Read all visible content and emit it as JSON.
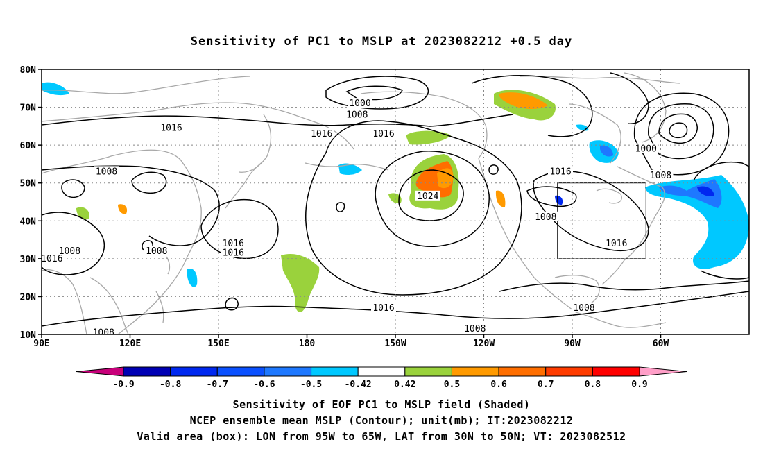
{
  "title": "Sensitivity of PC1 to MSLP at 2023082212 +0.5 day",
  "lat_labels": [
    "80N",
    "70N",
    "60N",
    "50N",
    "40N",
    "30N",
    "20N",
    "10N"
  ],
  "lon_labels": [
    "90E",
    "120E",
    "150E",
    "180",
    "150W",
    "120W",
    "90W",
    "60W"
  ],
  "contour_labels": [
    {
      "text": "1000",
      "lon": -162,
      "lat": 71
    },
    {
      "text": "1008",
      "lon": -163,
      "lat": 68
    },
    {
      "text": "1016",
      "lon": 134,
      "lat": 64.5
    },
    {
      "text": "1016",
      "lon": -175,
      "lat": 63
    },
    {
      "text": "1016",
      "lon": -154,
      "lat": 63
    },
    {
      "text": "1008",
      "lon": 112,
      "lat": 53
    },
    {
      "text": "1024",
      "lon": -139,
      "lat": 46.5
    },
    {
      "text": "1016",
      "lon": -94,
      "lat": 53
    },
    {
      "text": "1008",
      "lon": -99,
      "lat": 41
    },
    {
      "text": "1000",
      "lon": -65,
      "lat": 59
    },
    {
      "text": "1008",
      "lon": -60,
      "lat": 52
    },
    {
      "text": "1016",
      "lon": -75,
      "lat": 34
    },
    {
      "text": "1016",
      "lon": 155,
      "lat": 34
    },
    {
      "text": "1016",
      "lon": 155,
      "lat": 31.5
    },
    {
      "text": "1008",
      "lon": 129,
      "lat": 32
    },
    {
      "text": "1016",
      "lon": 93.5,
      "lat": 30
    },
    {
      "text": "1008",
      "lon": 99.5,
      "lat": 32
    },
    {
      "text": "1016",
      "lon": -154,
      "lat": 17
    },
    {
      "text": "1008",
      "lon": -86,
      "lat": 17
    },
    {
      "text": "1008",
      "lon": -123,
      "lat": 11.5
    },
    {
      "text": "1008",
      "lon": 111,
      "lat": 10.5
    }
  ],
  "colorbar": {
    "labels": [
      "-0.9",
      "-0.8",
      "-0.7",
      "-0.6",
      "-0.5",
      "-0.42",
      "0.42",
      "0.5",
      "0.6",
      "0.7",
      "0.8",
      "0.9"
    ],
    "colors": [
      "#0000b4",
      "#0028f0",
      "#0a50ff",
      "#1e78ff",
      "#00c8ff",
      "#ffffff",
      "#9ad23c",
      "#ff9a00",
      "#ff6e00",
      "#ff3c00",
      "#ff0000"
    ],
    "low_color": "#c8007a",
    "high_color": "#ff9fc8"
  },
  "captions": [
    "Sensitivity of EOF PC1 to MSLP field (Shaded)",
    "NCEP ensemble mean MSLP (Contour); unit(mb); IT:2023082212",
    "Valid area (box): LON from 95W to 65W, LAT from 30N to 50N; VT: 2023082512"
  ],
  "valid_box": {
    "lon_min": -95,
    "lon_max": -65,
    "lat_min": 30,
    "lat_max": 50
  }
}
